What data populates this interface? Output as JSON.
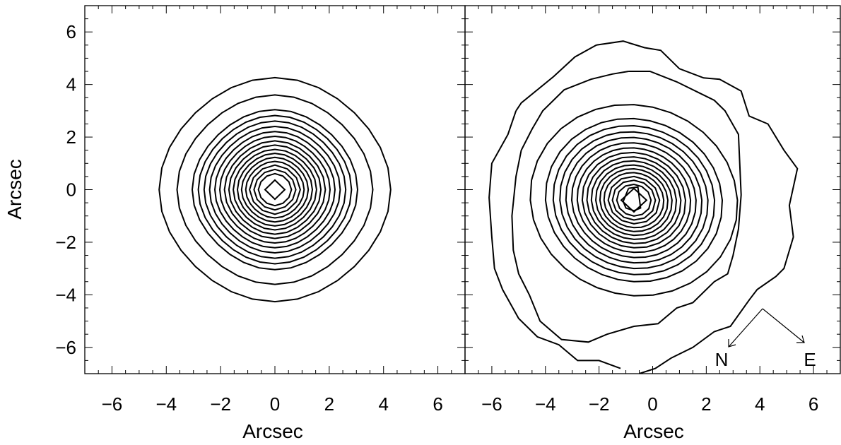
{
  "chart_data": [
    {
      "type": "contour",
      "title": "",
      "xlabel": "Arcsec",
      "ylabel": "Arcsec",
      "xlim": [
        -7,
        7
      ],
      "ylim": [
        -7,
        7
      ],
      "xticks": [
        -6,
        -4,
        -2,
        0,
        2,
        4,
        6
      ],
      "yticks": [
        -6,
        -4,
        -2,
        0,
        2,
        4,
        6
      ],
      "xtick_labels": [
        "−6",
        "−4",
        "−2",
        "0",
        "2",
        "4",
        "6"
      ],
      "ytick_labels": [
        "−6",
        "−4",
        "−2",
        "0",
        "2",
        "4",
        "6"
      ],
      "grid": false,
      "center": [
        0,
        0
      ],
      "contour_radii": [
        4.2,
        3.55,
        3.0,
        2.78,
        2.57,
        2.37,
        2.18,
        2.0,
        1.83,
        1.67,
        1.51,
        1.36,
        1.21,
        1.06,
        0.92,
        0.76,
        0.6,
        0.36
      ]
    },
    {
      "type": "contour",
      "title": "",
      "xlabel": "Arcsec",
      "ylabel": "",
      "xlim": [
        -7,
        7
      ],
      "ylim": [
        -7,
        7
      ],
      "xticks": [
        -6,
        -4,
        -2,
        0,
        2,
        4,
        6
      ],
      "yticks": [
        -6,
        -4,
        -2,
        0,
        2,
        4,
        6
      ],
      "xtick_labels": [
        "−6",
        "−4",
        "−2",
        "0",
        "2",
        "4",
        "6"
      ],
      "ytick_labels": [],
      "grid": false,
      "center": [
        -0.7,
        -0.4
      ],
      "outer_contours": [
        [
          [
            -2.1,
            5.5
          ],
          [
            -1.1,
            5.65
          ],
          [
            -0.3,
            5.4
          ],
          [
            0.3,
            5.3
          ],
          [
            1.0,
            4.6
          ],
          [
            1.9,
            4.25
          ],
          [
            2.5,
            4.2
          ],
          [
            3.3,
            3.75
          ],
          [
            3.6,
            2.8
          ],
          [
            4.3,
            2.5
          ],
          [
            4.9,
            1.5
          ],
          [
            5.4,
            0.8
          ],
          [
            5.1,
            -0.6
          ],
          [
            5.25,
            -1.8
          ],
          [
            4.9,
            -3.0
          ],
          [
            4.6,
            -3.3
          ],
          [
            3.9,
            -3.8
          ],
          [
            3.6,
            -4.2
          ],
          [
            2.9,
            -5.2
          ],
          [
            2.3,
            -5.4
          ],
          [
            1.5,
            -6.0
          ],
          [
            0.7,
            -6.4
          ],
          [
            0.1,
            -6.8
          ],
          [
            -0.5,
            -7.0
          ]
        ],
        [
          [
            -0.9,
            4.5
          ],
          [
            -0.1,
            4.5
          ],
          [
            0.9,
            4.1
          ],
          [
            1.7,
            3.7
          ],
          [
            2.3,
            3.4
          ],
          [
            2.7,
            3.0
          ],
          [
            3.2,
            2.1
          ],
          [
            3.3,
            -0.2
          ],
          [
            3.2,
            -1.5
          ],
          [
            3.0,
            -2.5
          ],
          [
            2.8,
            -3.2
          ],
          [
            2.3,
            -3.5
          ],
          [
            1.5,
            -4.3
          ],
          [
            0.9,
            -4.5
          ],
          [
            0.2,
            -5.1
          ],
          [
            -0.7,
            -5.2
          ],
          [
            -1.7,
            -5.5
          ],
          [
            -2.4,
            -5.8
          ],
          [
            -3.4,
            -5.7
          ],
          [
            -4.2,
            -5.0
          ],
          [
            -4.6,
            -4.0
          ],
          [
            -5.0,
            -3.2
          ],
          [
            -5.2,
            -2.3
          ],
          [
            -5.25,
            -1.0
          ],
          [
            -5.1,
            0.5
          ],
          [
            -4.9,
            1.5
          ],
          [
            -4.5,
            2.3
          ],
          [
            -4.1,
            3.0
          ],
          [
            -3.3,
            3.8
          ],
          [
            -2.3,
            4.2
          ],
          [
            -1.5,
            4.4
          ],
          [
            -0.9,
            4.5
          ]
        ],
        [
          [
            -5.1,
            3.0
          ],
          [
            -4.9,
            3.3
          ],
          [
            -4.3,
            3.8
          ],
          [
            -3.7,
            4.3
          ],
          [
            -2.9,
            5.05
          ],
          [
            -2.1,
            5.5
          ]
        ],
        [
          [
            -5.1,
            3.0
          ],
          [
            -5.4,
            2.1
          ],
          [
            -6.0,
            1.0
          ],
          [
            -6.1,
            -0.3
          ],
          [
            -6.0,
            -1.8
          ],
          [
            -5.9,
            -3.0
          ],
          [
            -5.6,
            -3.8
          ],
          [
            -5.0,
            -4.9
          ],
          [
            -4.3,
            -5.6
          ],
          [
            -3.5,
            -5.9
          ],
          [
            -2.8,
            -6.5
          ],
          [
            -2.0,
            -6.5
          ],
          [
            -1.2,
            -6.8
          ]
        ]
      ],
      "inner_radii": [
        3.75,
        3.2,
        2.92,
        2.68,
        2.46,
        2.25,
        2.05,
        1.87,
        1.7,
        1.54,
        1.38,
        1.23,
        1.08,
        0.93,
        0.78,
        0.62,
        0.46
      ],
      "peak_contour": [
        [
          -0.9,
          0.05
        ],
        [
          -0.55,
          0.1
        ],
        [
          -0.45,
          -0.7
        ],
        [
          -0.7,
          -0.8
        ],
        [
          -1.0,
          -0.7
        ],
        [
          -1.1,
          -0.45
        ],
        [
          -0.9,
          0.05
        ]
      ],
      "compass": {
        "north_label": "N",
        "east_label": "E"
      }
    }
  ]
}
